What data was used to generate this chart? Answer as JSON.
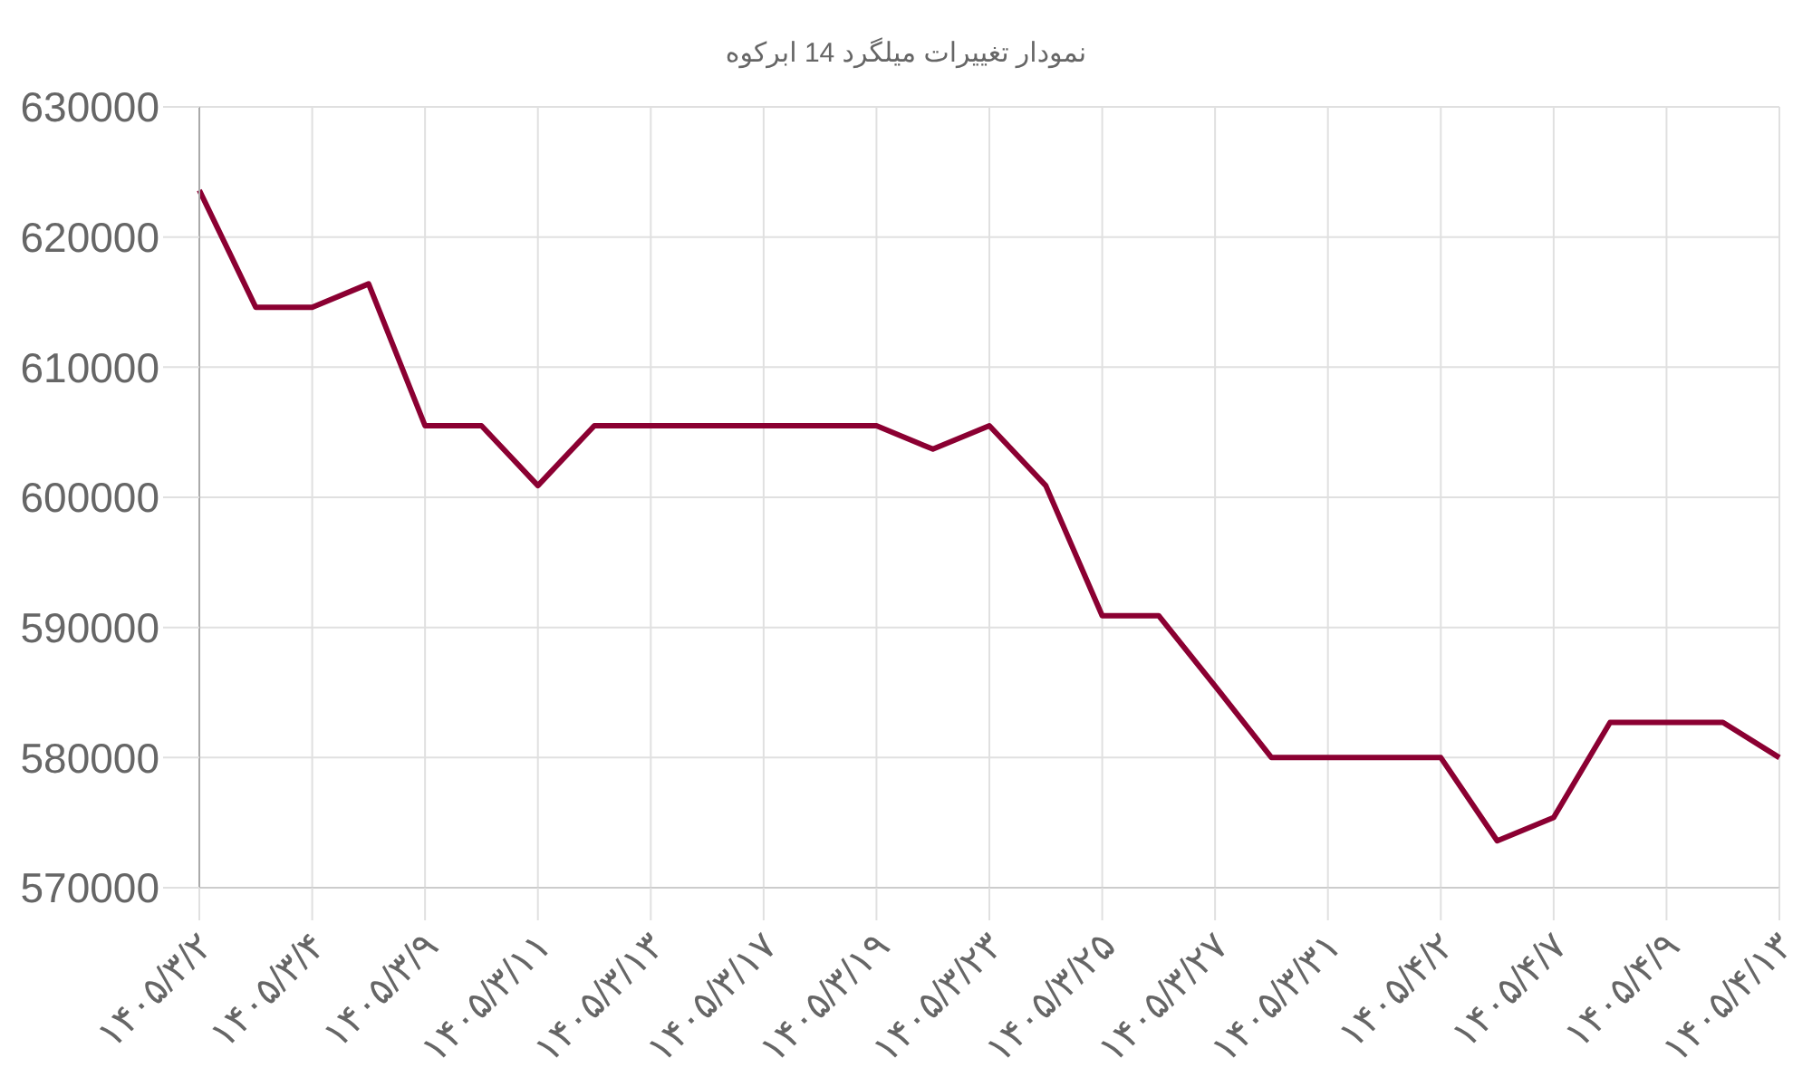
{
  "chart_data": {
    "type": "line",
    "title": "نمودار تغییرات میلگرد 14 ابرکوه",
    "categories": [
      "۱۴۰۵/۳/۲",
      null,
      "۱۴۰۵/۳/۴",
      null,
      "۱۴۰۵/۳/۹",
      null,
      "۱۴۰۵/۳/۱۱",
      null,
      "۱۴۰۵/۳/۱۳",
      null,
      "۱۴۰۵/۳/۱۷",
      null,
      "۱۴۰۵/۳/۱۹",
      null,
      "۱۴۰۵/۳/۲۳",
      null,
      "۱۴۰۵/۳/۲۵",
      null,
      "۱۴۰۵/۳/۲۷",
      null,
      "۱۴۰۵/۳/۳۱",
      null,
      "۱۴۰۵/۴/۲",
      null,
      "۱۴۰۵/۴/۷",
      null,
      "۱۴۰۵/۴/۹",
      null,
      "۱۴۰۵/۴/۱۳"
    ],
    "series": [
      {
        "color": "#8b0032",
        "values": [
          623600,
          614600,
          614600,
          616400,
          605500,
          605500,
          600900,
          605500,
          605500,
          605500,
          605500,
          605500,
          605500,
          603700,
          605500,
          600900,
          590900,
          590900,
          585500,
          580000,
          580000,
          580000,
          580000,
          573600,
          575400,
          582700,
          582700,
          582700,
          580000
        ]
      }
    ],
    "ylim": [
      570000,
      630000
    ],
    "yticks": [
      570000,
      580000,
      590000,
      600000,
      610000,
      620000,
      630000
    ],
    "grid": true,
    "marker": "none",
    "line_style": "solid"
  }
}
